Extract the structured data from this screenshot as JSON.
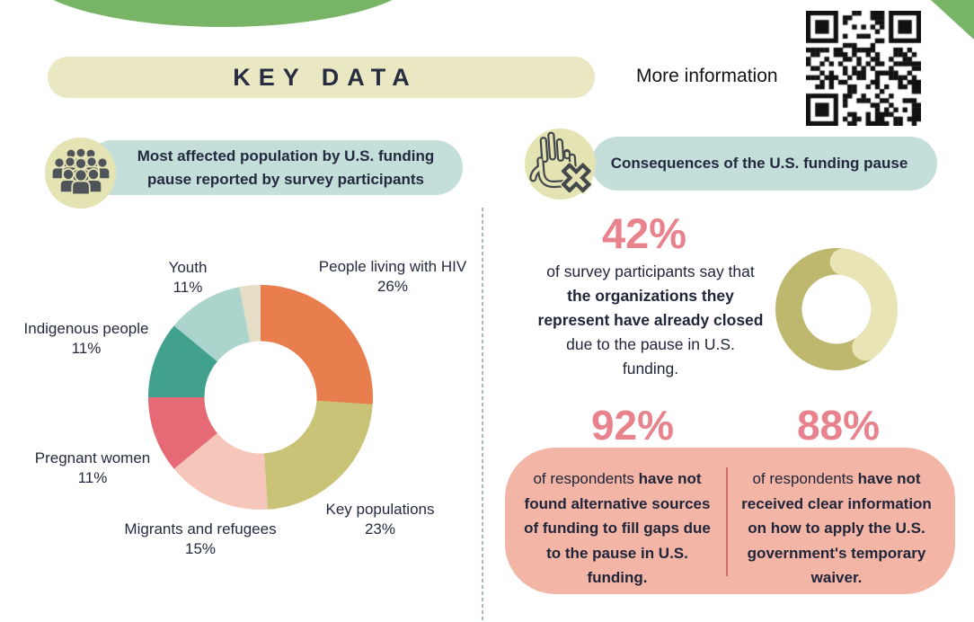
{
  "header": {
    "title": "KEY DATA",
    "more_info": "More information"
  },
  "left_section": {
    "header_line1": "Most affected population by U.S. funding",
    "header_line2": "pause reported by survey participants"
  },
  "right_section": {
    "header": "Consequences of the U.S. funding pause",
    "stat42": {
      "value": "42%",
      "lines": [
        [
          [
            "of survey participants say that",
            0
          ]
        ],
        [
          [
            "the organizations they",
            1
          ]
        ],
        [
          [
            "represent have already closed",
            1
          ]
        ],
        [
          [
            "due to the pause in U.S.",
            0
          ]
        ],
        [
          [
            "funding.",
            0
          ]
        ]
      ]
    },
    "stat92": {
      "value": "92%",
      "lines": [
        [
          [
            "of respondents ",
            0
          ],
          [
            "have not",
            1
          ]
        ],
        [
          [
            "found alternative sources",
            1
          ]
        ],
        [
          [
            "of funding to fill gaps due",
            1
          ]
        ],
        [
          [
            "to the pause in U.S.",
            1
          ]
        ],
        [
          [
            "funding.",
            1
          ]
        ]
      ]
    },
    "stat88": {
      "value": "88%",
      "lines": [
        [
          [
            "of respondents ",
            0
          ],
          [
            "have not",
            1
          ]
        ],
        [
          [
            "received clear information",
            1
          ]
        ],
        [
          [
            "on how to apply the U.S.",
            1
          ]
        ],
        [
          [
            "government's temporary",
            1
          ]
        ],
        [
          [
            "waiver.",
            1
          ]
        ]
      ]
    }
  },
  "colors": {
    "green": "#77b466",
    "cream": "#e9e8c3",
    "teal_pill": "#c4ded9",
    "pink_stat": "#e8838d",
    "salmon_box": "#f3b5a6"
  },
  "chart_data": [
    {
      "type": "donut",
      "title": "Most affected population by U.S. funding pause reported by survey participants",
      "categories": [
        "People living with HIV",
        "Key populations",
        "Migrants and refugees",
        "Pregnant women",
        "Indigenous people",
        "Youth",
        ""
      ],
      "values": [
        26,
        23,
        15,
        11,
        11,
        11,
        3
      ],
      "colors": [
        "#e87d4e",
        "#c9c377",
        "#f6c6ba",
        "#e56a76",
        "#41a18d",
        "#abd4cc",
        "#e6ddc7"
      ],
      "start_angle_deg": 0,
      "direction": "clockwise",
      "inner_radius_ratio": 0.5,
      "legend": "labels around donut"
    },
    {
      "type": "donut",
      "value": 42,
      "remainder": 58,
      "highlight_color": "#e8e4b6",
      "remainder_color": "#bdb86d"
    }
  ]
}
